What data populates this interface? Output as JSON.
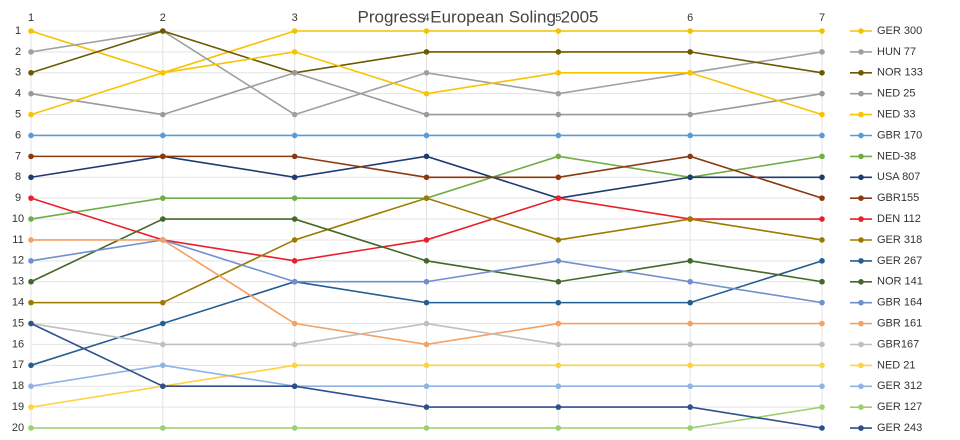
{
  "chart_data": {
    "type": "line",
    "title": "Progress European Soling 2005",
    "x": [
      1,
      2,
      3,
      4,
      5,
      6,
      7
    ],
    "xlim": [
      1,
      7
    ],
    "xticks": [
      1,
      2,
      3,
      4,
      5,
      6,
      7
    ],
    "ylim": [
      1,
      20
    ],
    "y_inverted": true,
    "yticks": [
      1,
      2,
      3,
      4,
      5,
      6,
      7,
      8,
      9,
      10,
      11,
      12,
      13,
      14,
      15,
      16,
      17,
      18,
      19,
      20
    ],
    "grid": true,
    "legend": "right",
    "series": [
      {
        "name": "GER 300",
        "color": "#f5c200",
        "values": [
          1,
          3,
          1,
          1,
          1,
          1,
          1
        ]
      },
      {
        "name": "HUN 77",
        "color": "#a0a0a0",
        "values": [
          2,
          1,
          5,
          3,
          4,
          3,
          2
        ]
      },
      {
        "name": "NOR 133",
        "color": "#6b5a00",
        "values": [
          3,
          1,
          3,
          2,
          2,
          2,
          3
        ]
      },
      {
        "name": "NED 25",
        "color": "#9a9a9a",
        "values": [
          4,
          5,
          3,
          5,
          5,
          5,
          4
        ]
      },
      {
        "name": "NED 33",
        "color": "#f8c400",
        "values": [
          5,
          3,
          2,
          4,
          3,
          3,
          5
        ]
      },
      {
        "name": "GBR 170",
        "color": "#5b9bd5",
        "values": [
          6,
          6,
          6,
          6,
          6,
          6,
          6
        ]
      },
      {
        "name": "NED-38",
        "color": "#70ad47",
        "values": [
          10,
          9,
          9,
          9,
          7,
          8,
          7
        ]
      },
      {
        "name": "USA 807",
        "color": "#1f3b70",
        "values": [
          8,
          7,
          8,
          7,
          9,
          8,
          8
        ]
      },
      {
        "name": "GBR155",
        "color": "#8b3a0f",
        "values": [
          7,
          7,
          7,
          8,
          8,
          7,
          9
        ]
      },
      {
        "name": "DEN 112",
        "color": "#e8202a",
        "values": [
          9,
          11,
          12,
          11,
          9,
          10,
          10
        ]
      },
      {
        "name": "GER 318",
        "color": "#9c7a00",
        "values": [
          14,
          14,
          11,
          9,
          11,
          10,
          11
        ]
      },
      {
        "name": "GER 267",
        "color": "#255e91",
        "values": [
          17,
          15,
          13,
          14,
          14,
          14,
          12
        ]
      },
      {
        "name": "NOR 141",
        "color": "#43682b",
        "values": [
          13,
          10,
          10,
          12,
          13,
          12,
          13
        ]
      },
      {
        "name": "GBR 164",
        "color": "#6f8fd0",
        "values": [
          12,
          11,
          13,
          13,
          12,
          13,
          14
        ]
      },
      {
        "name": "GBR 161",
        "color": "#f4a164",
        "values": [
          11,
          11,
          15,
          16,
          15,
          15,
          15
        ]
      },
      {
        "name": "GBR167",
        "color": "#bfbfbf",
        "values": [
          15,
          16,
          16,
          15,
          16,
          16,
          16
        ]
      },
      {
        "name": "NED 21",
        "color": "#ffd23f",
        "values": [
          19,
          18,
          17,
          17,
          17,
          17,
          17
        ]
      },
      {
        "name": "GER 312",
        "color": "#8fb4e3",
        "values": [
          18,
          17,
          18,
          18,
          18,
          18,
          18
        ]
      },
      {
        "name": "GER 127",
        "color": "#9ccf6e",
        "values": [
          20,
          20,
          20,
          20,
          20,
          20,
          19
        ]
      },
      {
        "name": "GER 243",
        "color": "#2f4f8f",
        "values": [
          15,
          18,
          18,
          19,
          19,
          19,
          20
        ]
      }
    ]
  }
}
